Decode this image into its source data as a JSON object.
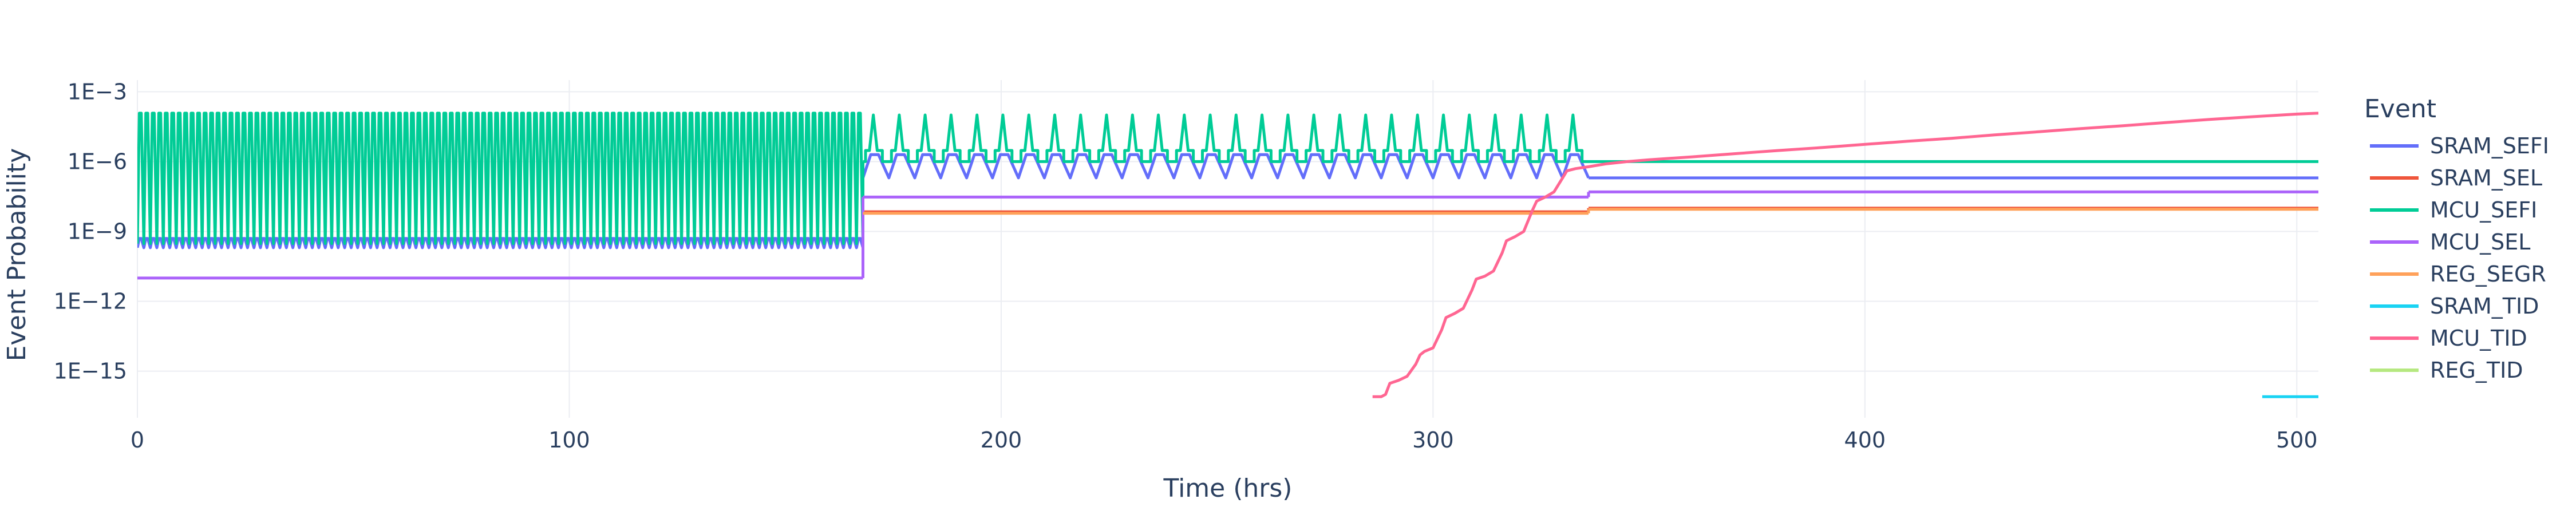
{
  "chart_data": {
    "type": "line",
    "xlabel": "Time (hrs)",
    "ylabel": "Event Probability",
    "xlim": [
      0,
      505
    ],
    "ylim_log10": [
      -17,
      -2.5
    ],
    "y_scale": "log",
    "x_ticks": [
      0,
      100,
      200,
      300,
      400,
      500
    ],
    "x_tick_labels": [
      "0",
      "100",
      "200",
      "300",
      "400",
      "500"
    ],
    "y_ticks_log10": [
      -3,
      -6,
      -9,
      -12,
      -15
    ],
    "y_tick_labels": [
      "1E−3",
      "1E−6",
      "1E−9",
      "1E−12",
      "1E−15"
    ],
    "grid": true,
    "legend_title": "Event",
    "legend_position": "right",
    "series": [
      {
        "name": "SRAM_SEFI",
        "color": "#636efa",
        "segments": [
          {
            "x_range": [
              0,
              168
            ],
            "pattern": "oscillating",
            "period": 1.5,
            "y_low": 2e-10,
            "y_high": 5e-10
          },
          {
            "x_range": [
              168,
              336
            ],
            "pattern": "oscillating",
            "period": 6,
            "y_low": 2e-07,
            "y_high": 2e-06
          },
          {
            "x_range": [
              336,
              505
            ],
            "pattern": "constant",
            "y": 2e-07
          }
        ]
      },
      {
        "name": "SRAM_SEL",
        "color": "#ef553b",
        "segments": [
          {
            "x_range": [
              168,
              336
            ],
            "pattern": "constant",
            "y": 7e-09
          },
          {
            "x_range": [
              336,
              505
            ],
            "pattern": "constant",
            "y": 1e-08
          }
        ]
      },
      {
        "name": "MCU_SEFI",
        "color": "#00cc96",
        "segments": [
          {
            "x_range": [
              0,
              168
            ],
            "pattern": "oscillating",
            "period": 1.5,
            "y_low": 3e-10,
            "y_high": 0.00012
          },
          {
            "x_range": [
              168,
              336
            ],
            "pattern": "oscillating",
            "period": 6,
            "y_low": 1e-06,
            "y_high": 0.0001,
            "inner_low": 1e-06,
            "inner_high": 3e-06
          },
          {
            "x_range": [
              336,
              505
            ],
            "pattern": "constant",
            "y": 1e-06
          }
        ]
      },
      {
        "name": "MCU_SEL",
        "color": "#ab63fa",
        "segments": [
          {
            "x_range": [
              0,
              168
            ],
            "pattern": "constant",
            "y": 1e-11
          },
          {
            "x_range": [
              168,
              336
            ],
            "pattern": "constant",
            "y": 3e-08
          },
          {
            "x_range": [
              336,
              505
            ],
            "pattern": "constant",
            "y": 5e-08
          }
        ]
      },
      {
        "name": "REG_SEGR",
        "color": "#ffa15a",
        "segments": [
          {
            "x_range": [
              168,
              336
            ],
            "pattern": "constant",
            "y": 6e-09
          },
          {
            "x_range": [
              336,
              505
            ],
            "pattern": "constant",
            "y": 9e-09
          }
        ]
      },
      {
        "name": "SRAM_TID",
        "color": "#19d3f3",
        "segments": [
          {
            "x_range": [
              492,
              505
            ],
            "pattern": "constant",
            "y": 8e-17
          }
        ]
      },
      {
        "name": "MCU_TID",
        "color": "#ff6692",
        "points": [
          [
            286,
            8e-17
          ],
          [
            288,
            8e-17
          ],
          [
            289,
            1e-16
          ],
          [
            290,
            3e-16
          ],
          [
            292,
            4e-16
          ],
          [
            294,
            6e-16
          ],
          [
            296,
            2e-15
          ],
          [
            297,
            5e-15
          ],
          [
            298,
            7e-15
          ],
          [
            300,
            1e-14
          ],
          [
            302,
            6e-14
          ],
          [
            303,
            2e-13
          ],
          [
            305,
            3e-13
          ],
          [
            307,
            5e-13
          ],
          [
            309,
            3e-12
          ],
          [
            310,
            9e-12
          ],
          [
            312,
            1.2e-11
          ],
          [
            314,
            2e-11
          ],
          [
            316,
            1.2e-10
          ],
          [
            317,
            4e-10
          ],
          [
            319,
            6e-10
          ],
          [
            321,
            1e-09
          ],
          [
            323,
            8e-09
          ],
          [
            324,
            2e-08
          ],
          [
            326,
            3e-08
          ],
          [
            328,
            5e-08
          ],
          [
            330,
            2e-07
          ],
          [
            331,
            4e-07
          ],
          [
            333,
            5e-07
          ],
          [
            336,
            6e-07
          ],
          [
            340,
            8e-07
          ],
          [
            345,
            1e-06
          ],
          [
            350,
            1.2e-06
          ],
          [
            360,
            1.6e-06
          ],
          [
            370,
            2.2e-06
          ],
          [
            380,
            3e-06
          ],
          [
            390,
            4e-06
          ],
          [
            400,
            5.5e-06
          ],
          [
            410,
            7.5e-06
          ],
          [
            420,
            1e-05
          ],
          [
            430,
            1.4e-05
          ],
          [
            440,
            1.9e-05
          ],
          [
            450,
            2.6e-05
          ],
          [
            460,
            3.5e-05
          ],
          [
            470,
            4.8e-05
          ],
          [
            480,
            6.5e-05
          ],
          [
            490,
            8.5e-05
          ],
          [
            500,
            0.00011
          ],
          [
            505,
            0.00012
          ]
        ]
      },
      {
        "name": "REG_TID",
        "color": "#b6e880",
        "segments": []
      }
    ]
  }
}
